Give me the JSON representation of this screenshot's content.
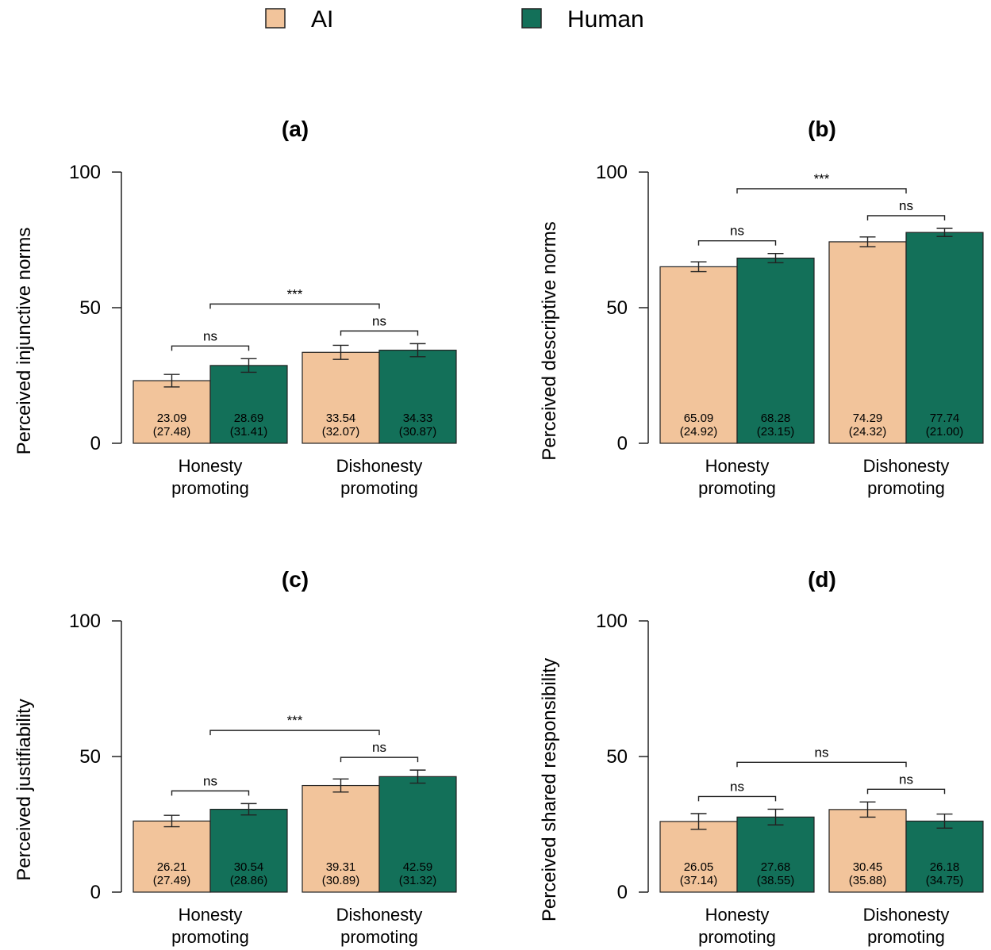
{
  "legend": {
    "items": [
      {
        "label": "AI",
        "color": "#f2c49b"
      },
      {
        "label": "Human",
        "color": "#137059"
      }
    ]
  },
  "chart_data": [
    {
      "type": "bar",
      "title": "(a)",
      "ylabel": "Perceived injunctive norms",
      "ylim": [
        0,
        100
      ],
      "yticks": [
        "0",
        "50",
        "100"
      ],
      "categories": [
        [
          "Honesty",
          "promoting"
        ],
        [
          "Dishonesty",
          "promoting"
        ]
      ],
      "series": [
        {
          "name": "AI",
          "values": [
            23.09,
            33.54
          ],
          "sd": [
            "(27.48)",
            "(32.07)"
          ],
          "value_labels": [
            "23.09",
            "33.54"
          ],
          "err": [
            2.3,
            2.6
          ]
        },
        {
          "name": "Human",
          "values": [
            28.69,
            34.33
          ],
          "sd": [
            "(31.41)",
            "(30.87)"
          ],
          "value_labels": [
            "28.69",
            "34.33"
          ],
          "err": [
            2.5,
            2.4
          ]
        }
      ],
      "comparisons": {
        "within": [
          "ns",
          "ns"
        ],
        "between": "***"
      }
    },
    {
      "type": "bar",
      "title": "(b)",
      "ylabel": "Perceived descriptive norms",
      "ylim": [
        0,
        100
      ],
      "yticks": [
        "0",
        "50",
        "100"
      ],
      "categories": [
        [
          "Honesty",
          "promoting"
        ],
        [
          "Dishonesty",
          "promoting"
        ]
      ],
      "series": [
        {
          "name": "AI",
          "values": [
            65.09,
            74.29
          ],
          "sd": [
            "(24.92)",
            "(24.32)"
          ],
          "value_labels": [
            "65.09",
            "74.29"
          ],
          "err": [
            1.8,
            1.8
          ]
        },
        {
          "name": "Human",
          "values": [
            68.28,
            77.74
          ],
          "sd": [
            "(23.15)",
            "(21.00)"
          ],
          "value_labels": [
            "68.28",
            "77.74"
          ],
          "err": [
            1.7,
            1.5
          ]
        }
      ],
      "comparisons": {
        "within": [
          "ns",
          "ns"
        ],
        "between": "***"
      }
    },
    {
      "type": "bar",
      "title": "(c)",
      "ylabel": "Perceived justifiability",
      "ylim": [
        0,
        100
      ],
      "yticks": [
        "0",
        "50",
        "100"
      ],
      "categories": [
        [
          "Honesty",
          "promoting"
        ],
        [
          "Dishonesty",
          "promoting"
        ]
      ],
      "series": [
        {
          "name": "AI",
          "values": [
            26.21,
            39.31
          ],
          "sd": [
            "(27.49)",
            "(30.89)"
          ],
          "value_labels": [
            "26.21",
            "39.31"
          ],
          "err": [
            2.1,
            2.4
          ]
        },
        {
          "name": "Human",
          "values": [
            30.54,
            42.59
          ],
          "sd": [
            "(28.86)",
            "(31.32)"
          ],
          "value_labels": [
            "30.54",
            "42.59"
          ],
          "err": [
            2.1,
            2.4
          ]
        }
      ],
      "comparisons": {
        "within": [
          "ns",
          "ns"
        ],
        "between": "***"
      }
    },
    {
      "type": "bar",
      "title": "(d)",
      "ylabel": "Perceived shared responsibility",
      "ylim": [
        0,
        100
      ],
      "yticks": [
        "0",
        "50",
        "100"
      ],
      "categories": [
        [
          "Honesty",
          "promoting"
        ],
        [
          "Dishonesty",
          "promoting"
        ]
      ],
      "series": [
        {
          "name": "AI",
          "values": [
            26.05,
            30.45
          ],
          "sd": [
            "(37.14)",
            "(35.88)"
          ],
          "value_labels": [
            "26.05",
            "30.45"
          ],
          "err": [
            2.9,
            2.8
          ]
        },
        {
          "name": "Human",
          "values": [
            27.68,
            26.18
          ],
          "sd": [
            "(38.55)",
            "(34.75)"
          ],
          "value_labels": [
            "27.68",
            "26.18"
          ],
          "err": [
            2.9,
            2.6
          ]
        }
      ],
      "comparisons": {
        "within": [
          "ns",
          "ns"
        ],
        "between": "ns"
      }
    }
  ]
}
